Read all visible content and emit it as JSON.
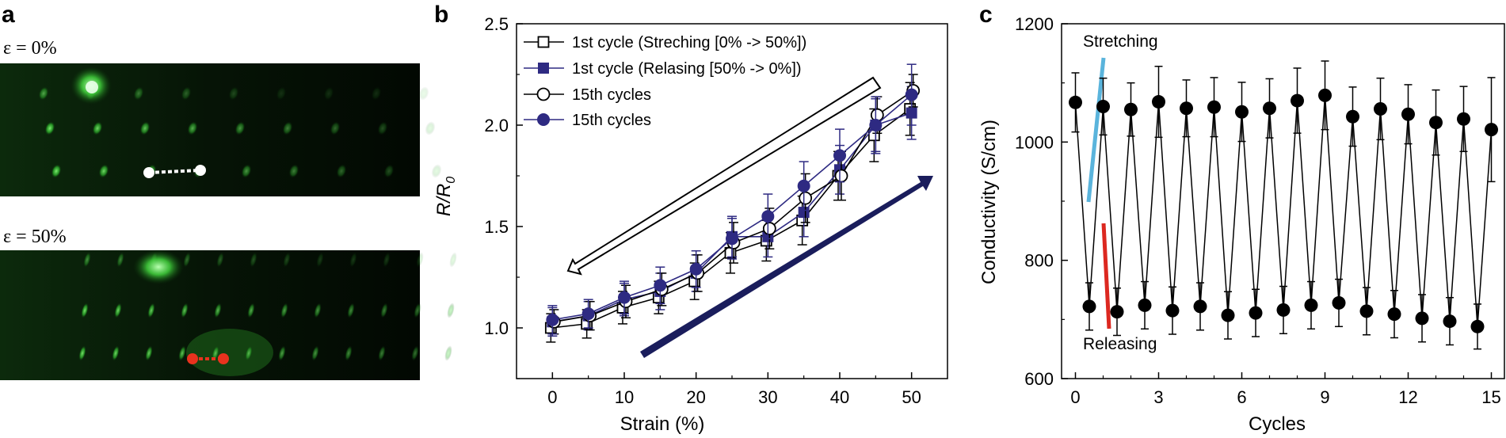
{
  "panel_labels": {
    "a": "a",
    "b": "b",
    "c": "c"
  },
  "micrographs": [
    {
      "label": "ε = 0%",
      "marker_color": "#ffffff"
    },
    {
      "label": "ε = 50%",
      "marker_color": "#e8321e"
    }
  ],
  "colors": {
    "navy": "#2e2a82",
    "black": "#000000",
    "stretch_blue": "#5ab4dc",
    "release_red": "#dc2820",
    "micro_bg": "#020a02",
    "micro_green": "#3fc93a"
  },
  "chart_data": [
    {
      "type": "line",
      "panel": "b",
      "xlabel": "Strain (%)",
      "ylabel_main": "R/R",
      "ylabel_sub": "0",
      "xlim": [
        -5,
        55
      ],
      "ylim": [
        0.75,
        2.5
      ],
      "xticks": [
        "0",
        "10",
        "20",
        "30",
        "40",
        "50"
      ],
      "yticks": [
        "1.0",
        "1.5",
        "2.0",
        "2.5"
      ],
      "x": [
        0,
        5,
        10,
        15,
        20,
        25,
        30,
        35,
        40,
        45,
        50
      ],
      "series": [
        {
          "name": "1st cycle (Streching [0% -> 50%])",
          "marker": "open-square",
          "color": "#000000",
          "values": [
            1.0,
            1.02,
            1.1,
            1.15,
            1.23,
            1.37,
            1.43,
            1.53,
            1.75,
            1.95,
            2.08
          ],
          "errors": [
            0.07,
            0.07,
            0.08,
            0.08,
            0.09,
            0.1,
            0.1,
            0.12,
            0.12,
            0.13,
            0.13
          ]
        },
        {
          "name": "1st cycle (Relasing [50% -> 0%])",
          "marker": "filled-square",
          "color": "#2e2a82",
          "values": [
            1.03,
            1.06,
            1.14,
            1.18,
            1.27,
            1.45,
            1.45,
            1.57,
            1.78,
            2.0,
            2.06
          ],
          "errors": [
            0.07,
            0.07,
            0.08,
            0.09,
            0.09,
            0.1,
            0.1,
            0.12,
            0.12,
            0.13,
            0.13
          ]
        },
        {
          "name": "15th cycles",
          "marker": "open-circle",
          "color": "#000000",
          "values": [
            1.03,
            1.06,
            1.13,
            1.19,
            1.27,
            1.42,
            1.49,
            1.64,
            1.75,
            2.05,
            2.17
          ],
          "errors": [
            0.06,
            0.07,
            0.08,
            0.08,
            0.09,
            0.1,
            0.1,
            0.12,
            0.12,
            0.09,
            0.08
          ]
        },
        {
          "name": "15th cycles",
          "marker": "filled-circle",
          "color": "#2e2a82",
          "values": [
            1.04,
            1.07,
            1.15,
            1.21,
            1.29,
            1.44,
            1.55,
            1.7,
            1.85,
            2.0,
            2.15
          ],
          "errors": [
            0.07,
            0.07,
            0.08,
            0.09,
            0.09,
            0.1,
            0.11,
            0.12,
            0.13,
            0.14,
            0.15
          ]
        }
      ]
    },
    {
      "type": "line",
      "panel": "c",
      "xlabel": "Cycles",
      "ylabel": "Conductivity (S/cm)",
      "xlim": [
        -0.5,
        15.5
      ],
      "ylim": [
        600,
        1200
      ],
      "xticks": [
        "0",
        "3",
        "6",
        "9",
        "12",
        "15"
      ],
      "yticks": [
        "600",
        "800",
        "1000",
        "1200"
      ],
      "annotations": {
        "stretching": "Stretching",
        "releasing": "Releasing"
      },
      "series": [
        {
          "name": "Conductivity",
          "color": "#000000",
          "x": [
            0,
            0.5,
            1,
            1.5,
            2,
            2.5,
            3,
            3.5,
            4,
            4.5,
            5,
            5.5,
            6,
            6.5,
            7,
            7.5,
            8,
            8.5,
            9,
            9.5,
            10,
            10.5,
            11,
            11.5,
            12,
            12.5,
            13,
            13.5,
            14,
            14.5,
            15
          ],
          "values": [
            1067,
            722,
            1060,
            713,
            1055,
            724,
            1068,
            715,
            1057,
            722,
            1059,
            707,
            1051,
            711,
            1057,
            716,
            1070,
            724,
            1079,
            728,
            1043,
            714,
            1056,
            709,
            1047,
            702,
            1033,
            697,
            1039,
            688,
            1021
          ],
          "errors": [
            50,
            40,
            48,
            40,
            45,
            40,
            60,
            40,
            48,
            40,
            50,
            40,
            50,
            40,
            50,
            40,
            55,
            40,
            58,
            40,
            50,
            40,
            52,
            40,
            50,
            40,
            55,
            40,
            55,
            38,
            88
          ]
        }
      ]
    }
  ]
}
